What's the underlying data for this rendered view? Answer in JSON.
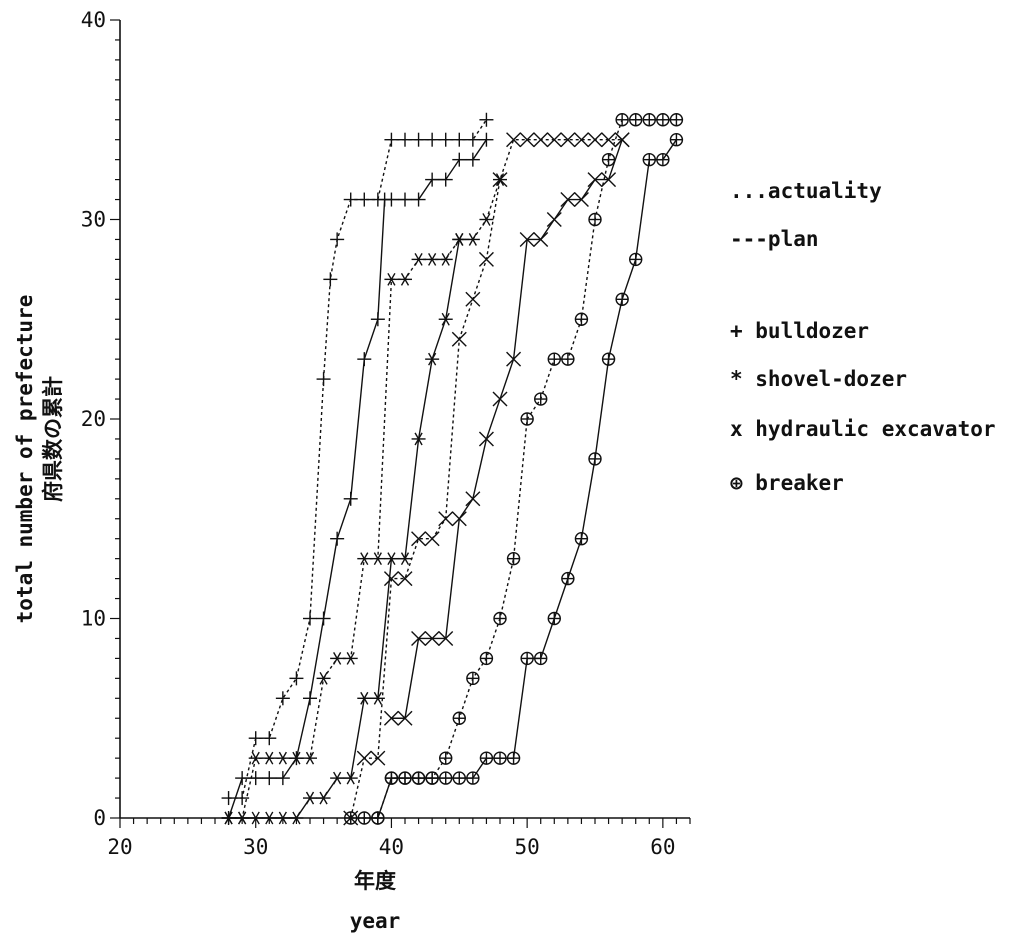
{
  "chart_data": {
    "type": "line",
    "title": "",
    "xlabel_ja": "年度",
    "xlabel": "year",
    "ylabel": "total number of prefecture",
    "ylabel_ja": "府県数の累計",
    "xlim": [
      20,
      62
    ],
    "ylim": [
      0,
      40
    ],
    "x_ticks": [
      20,
      30,
      40,
      50,
      60
    ],
    "y_ticks": [
      0,
      10,
      20,
      30,
      40
    ],
    "grid": false,
    "legend": {
      "placement": "right",
      "line_styles": [
        {
          "label": "...actuality",
          "style": "dotted"
        },
        {
          "label": "---plan",
          "style": "solid"
        }
      ],
      "markers": [
        {
          "symbol": "+",
          "label": "+ bulldozer",
          "marker": "plus"
        },
        {
          "symbol": "*",
          "label": "* shovel-dozer",
          "marker": "star"
        },
        {
          "symbol": "x",
          "label": "x hydraulic excavator",
          "marker": "cross"
        },
        {
          "symbol": "⊕",
          "label": "⊕ breaker",
          "marker": "circleplus"
        }
      ]
    },
    "series": [
      {
        "machine": "bulldozer",
        "kind": "actuality",
        "marker": "plus",
        "style": "dotted",
        "x": [
          28,
          29,
          30,
          31,
          32,
          33,
          34,
          35,
          35.5,
          36,
          37,
          38,
          39,
          40,
          41,
          42,
          43,
          44,
          45,
          46,
          47
        ],
        "y": [
          1,
          1,
          4,
          4,
          6,
          7,
          10,
          22,
          27,
          29,
          31,
          31,
          31,
          34,
          34,
          34,
          34,
          34,
          34,
          34,
          35
        ]
      },
      {
        "machine": "bulldozer",
        "kind": "plan",
        "marker": "plus",
        "style": "solid",
        "x": [
          28,
          29,
          30,
          31,
          32,
          33,
          34,
          35,
          36,
          37,
          38,
          39,
          39.5,
          40,
          41,
          42,
          43,
          44,
          45,
          46,
          47
        ],
        "y": [
          0,
          2,
          2,
          2,
          2,
          3,
          6,
          10,
          14,
          16,
          23,
          25,
          31,
          31,
          31,
          31,
          32,
          32,
          33,
          33,
          34
        ]
      },
      {
        "machine": "shovel-dozer",
        "kind": "actuality",
        "marker": "star",
        "style": "dotted",
        "x": [
          28,
          29,
          30,
          31,
          32,
          33,
          34,
          35,
          36,
          37,
          38,
          39,
          40,
          41,
          42,
          43,
          44,
          45,
          46,
          47,
          48
        ],
        "y": [
          0,
          0,
          3,
          3,
          3,
          3,
          3,
          7,
          8,
          8,
          13,
          13,
          27,
          27,
          28,
          28,
          28,
          29,
          29,
          30,
          32
        ]
      },
      {
        "machine": "shovel-dozer",
        "kind": "plan",
        "marker": "star",
        "style": "solid",
        "x": [
          28,
          29,
          30,
          31,
          32,
          33,
          34,
          35,
          36,
          37,
          38,
          39,
          40,
          41,
          42,
          43,
          44,
          45
        ],
        "y": [
          0,
          0,
          0,
          0,
          0,
          0,
          1,
          1,
          2,
          2,
          6,
          6,
          13,
          13,
          19,
          23,
          25,
          29
        ]
      },
      {
        "machine": "hydraulic excavator",
        "kind": "actuality",
        "marker": "cross",
        "style": "dotted",
        "x": [
          37,
          38,
          39,
          40,
          41,
          42,
          43,
          44,
          45,
          46,
          47,
          48,
          49,
          50,
          51,
          52,
          53,
          54,
          55,
          56,
          57
        ],
        "y": [
          0,
          3,
          3,
          12,
          12,
          14,
          14,
          15,
          24,
          26,
          28,
          32,
          34,
          34,
          34,
          34,
          34,
          34,
          34,
          34,
          34
        ]
      },
      {
        "machine": "hydraulic excavator",
        "kind": "plan",
        "marker": "cross",
        "style": "solid",
        "x": [
          40,
          41,
          42,
          43,
          44,
          45,
          46,
          47,
          48,
          49,
          50,
          51,
          52,
          53,
          54,
          55,
          56,
          57
        ],
        "y": [
          5,
          5,
          9,
          9,
          9,
          15,
          16,
          19,
          21,
          23,
          29,
          29,
          30,
          31,
          31,
          32,
          32,
          34
        ]
      },
      {
        "machine": "breaker",
        "kind": "actuality",
        "marker": "circleplus",
        "style": "dotted",
        "x": [
          37,
          38,
          39,
          40,
          41,
          42,
          43,
          44,
          45,
          46,
          47,
          48,
          49,
          50,
          51,
          52,
          53,
          54,
          55,
          56,
          57,
          58,
          59,
          60,
          61
        ],
        "y": [
          0,
          0,
          0,
          2,
          2,
          2,
          2,
          3,
          5,
          7,
          8,
          10,
          13,
          20,
          21,
          23,
          23,
          25,
          30,
          33,
          35,
          35,
          35,
          35,
          35
        ]
      },
      {
        "machine": "breaker",
        "kind": "plan",
        "marker": "circleplus",
        "style": "solid",
        "x": [
          39,
          40,
          41,
          42,
          43,
          44,
          45,
          46,
          47,
          48,
          49,
          50,
          51,
          52,
          53,
          54,
          55,
          56,
          57,
          58,
          59,
          60,
          61
        ],
        "y": [
          0,
          2,
          2,
          2,
          2,
          2,
          2,
          2,
          3,
          3,
          3,
          8,
          8,
          10,
          12,
          14,
          18,
          23,
          26,
          28,
          33,
          33,
          34
        ]
      }
    ]
  }
}
